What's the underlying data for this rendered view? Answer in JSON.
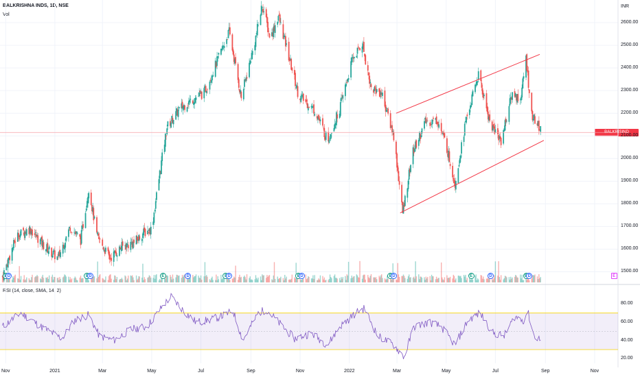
{
  "header": {
    "title": "BALKRISHNA INDS, 1D, NSE",
    "vol_label": "Vol"
  },
  "price_axis": {
    "currency": "INR",
    "last_price_badge": "BALKRISIND"
  },
  "rsi_legend": "RSI (14, close, SMA, 14, 2)",
  "colors": {
    "up": "#26a69a",
    "down": "#ef5350",
    "rsi_line": "#7e57c2",
    "rsi_band": "rgba(126,87,194,0.1)",
    "rsi_bound": "#f5d300",
    "channel": "#f23645",
    "last_price_line": "#f6a0a8"
  },
  "chart_data": [
    {
      "type": "candlestick",
      "title": "BALKRISHNA INDS, 1D, NSE",
      "ylim": [
        1450,
        2700
      ],
      "yticks": [
        1500,
        1600,
        1700,
        1800,
        1900,
        2000,
        2100,
        2200,
        2300,
        2400,
        2500,
        2600
      ],
      "ytick_labels": [
        "1500.00",
        "1600.00",
        "1700.00",
        "1800.00",
        "1900.00",
        "2000.00",
        "2100.00",
        "2200.00",
        "2300.00",
        "2400.00",
        "2500.00",
        "2600.00"
      ],
      "xtick_labels": [
        "Nov",
        "2021",
        "Mar",
        "May",
        "Jul",
        "Sep",
        "Nov",
        "2022",
        "Mar",
        "May",
        "Jul",
        "Sep",
        "Nov"
      ],
      "last_price": 2115,
      "close_path": [
        [
          "2020-10-28",
          1480
        ],
        [
          "2020-11-15",
          1660
        ],
        [
          "2020-12-01",
          1690
        ],
        [
          "2020-12-20",
          1610
        ],
        [
          "2021-01-05",
          1560
        ],
        [
          "2021-01-20",
          1700
        ],
        [
          "2021-02-02",
          1640
        ],
        [
          "2021-02-12",
          1870
        ],
        [
          "2021-02-22",
          1660
        ],
        [
          "2021-03-10",
          1560
        ],
        [
          "2021-03-25",
          1610
        ],
        [
          "2021-04-10",
          1630
        ],
        [
          "2021-04-20",
          1670
        ],
        [
          "2021-05-01",
          1690
        ],
        [
          "2021-05-12",
          1960
        ],
        [
          "2021-05-20",
          2140
        ],
        [
          "2021-06-05",
          2220
        ],
        [
          "2021-06-20",
          2260
        ],
        [
          "2021-07-05",
          2290
        ],
        [
          "2021-07-20",
          2420
        ],
        [
          "2021-08-05",
          2560
        ],
        [
          "2021-08-20",
          2270
        ],
        [
          "2021-09-05",
          2500
        ],
        [
          "2021-09-15",
          2680
        ],
        [
          "2021-09-25",
          2530
        ],
        [
          "2021-10-05",
          2630
        ],
        [
          "2021-10-18",
          2450
        ],
        [
          "2021-10-30",
          2280
        ],
        [
          "2021-11-20",
          2210
        ],
        [
          "2021-12-05",
          2080
        ],
        [
          "2021-12-20",
          2220
        ],
        [
          "2022-01-05",
          2440
        ],
        [
          "2022-01-17",
          2510
        ],
        [
          "2022-01-28",
          2310
        ],
        [
          "2022-02-10",
          2290
        ],
        [
          "2022-02-25",
          2100
        ],
        [
          "2022-03-08",
          1760
        ],
        [
          "2022-03-20",
          2020
        ],
        [
          "2022-04-05",
          2160
        ],
        [
          "2022-04-20",
          2170
        ],
        [
          "2022-05-01",
          2060
        ],
        [
          "2022-05-12",
          1890
        ],
        [
          "2022-05-25",
          2160
        ],
        [
          "2022-06-10",
          2370
        ],
        [
          "2022-06-25",
          2150
        ],
        [
          "2022-07-08",
          2080
        ],
        [
          "2022-07-22",
          2290
        ],
        [
          "2022-08-01",
          2260
        ],
        [
          "2022-08-08",
          2440
        ],
        [
          "2022-08-15",
          2190
        ],
        [
          "2022-08-28",
          2115
        ]
      ],
      "channel": {
        "upper": [
          [
            "2022-02-28",
            2200
          ],
          [
            "2022-08-25",
            2460
          ]
        ],
        "lower": [
          [
            "2022-03-05",
            1760
          ],
          [
            "2022-08-30",
            2080
          ]
        ]
      },
      "events": [
        {
          "type": "E",
          "date": "2020-11-01"
        },
        {
          "type": "D",
          "date": "2020-11-05"
        },
        {
          "type": "E",
          "date": "2021-02-10"
        },
        {
          "type": "D",
          "date": "2021-02-14"
        },
        {
          "type": "E",
          "date": "2021-05-15"
        },
        {
          "type": "D",
          "date": "2021-06-15"
        },
        {
          "type": "E",
          "date": "2021-08-01"
        },
        {
          "type": "D",
          "date": "2021-08-05"
        },
        {
          "type": "E",
          "date": "2021-10-30"
        },
        {
          "type": "D",
          "date": "2021-11-03"
        },
        {
          "type": "E",
          "date": "2022-02-21"
        },
        {
          "type": "D",
          "date": "2022-02-25"
        },
        {
          "type": "E",
          "date": "2022-06-01"
        },
        {
          "type": "D",
          "date": "2022-06-25"
        },
        {
          "type": "E",
          "date": "2022-08-08"
        },
        {
          "type": "D",
          "date": "2022-08-12"
        },
        {
          "type": "E",
          "date": "2022-11-25",
          "upcoming": true
        }
      ]
    },
    {
      "type": "line",
      "title": "RSI (14, close, SMA, 14, 2)",
      "ylim": [
        15,
        90
      ],
      "yticks": [
        20,
        40,
        60,
        80
      ],
      "ytick_labels": [
        "20.00",
        "40.00",
        "60.00",
        "80.00"
      ],
      "bands": {
        "upper": 70,
        "middle": 50,
        "lower": 30
      },
      "rsi_path": [
        [
          "2020-10-28",
          55
        ],
        [
          "2020-11-20",
          70
        ],
        [
          "2020-12-15",
          55
        ],
        [
          "2021-01-10",
          42
        ],
        [
          "2021-01-25",
          62
        ],
        [
          "2021-02-12",
          68
        ],
        [
          "2021-02-25",
          45
        ],
        [
          "2021-03-15",
          40
        ],
        [
          "2021-04-05",
          52
        ],
        [
          "2021-04-25",
          55
        ],
        [
          "2021-05-15",
          78
        ],
        [
          "2021-05-25",
          88
        ],
        [
          "2021-06-10",
          72
        ],
        [
          "2021-06-25",
          60
        ],
        [
          "2021-07-10",
          62
        ],
        [
          "2021-07-25",
          66
        ],
        [
          "2021-08-10",
          72
        ],
        [
          "2021-08-22",
          40
        ],
        [
          "2021-09-10",
          70
        ],
        [
          "2021-09-20",
          74
        ],
        [
          "2021-10-05",
          60
        ],
        [
          "2021-10-25",
          42
        ],
        [
          "2021-11-15",
          48
        ],
        [
          "2021-12-05",
          35
        ],
        [
          "2021-12-20",
          55
        ],
        [
          "2022-01-12",
          72
        ],
        [
          "2022-01-20",
          75
        ],
        [
          "2022-02-05",
          45
        ],
        [
          "2022-02-25",
          35
        ],
        [
          "2022-03-10",
          22
        ],
        [
          "2022-03-22",
          55
        ],
        [
          "2022-04-10",
          60
        ],
        [
          "2022-04-25",
          55
        ],
        [
          "2022-05-12",
          35
        ],
        [
          "2022-05-28",
          62
        ],
        [
          "2022-06-12",
          70
        ],
        [
          "2022-06-28",
          48
        ],
        [
          "2022-07-12",
          45
        ],
        [
          "2022-07-25",
          66
        ],
        [
          "2022-08-05",
          62
        ],
        [
          "2022-08-10",
          72
        ],
        [
          "2022-08-18",
          45
        ],
        [
          "2022-08-28",
          40
        ]
      ]
    }
  ]
}
